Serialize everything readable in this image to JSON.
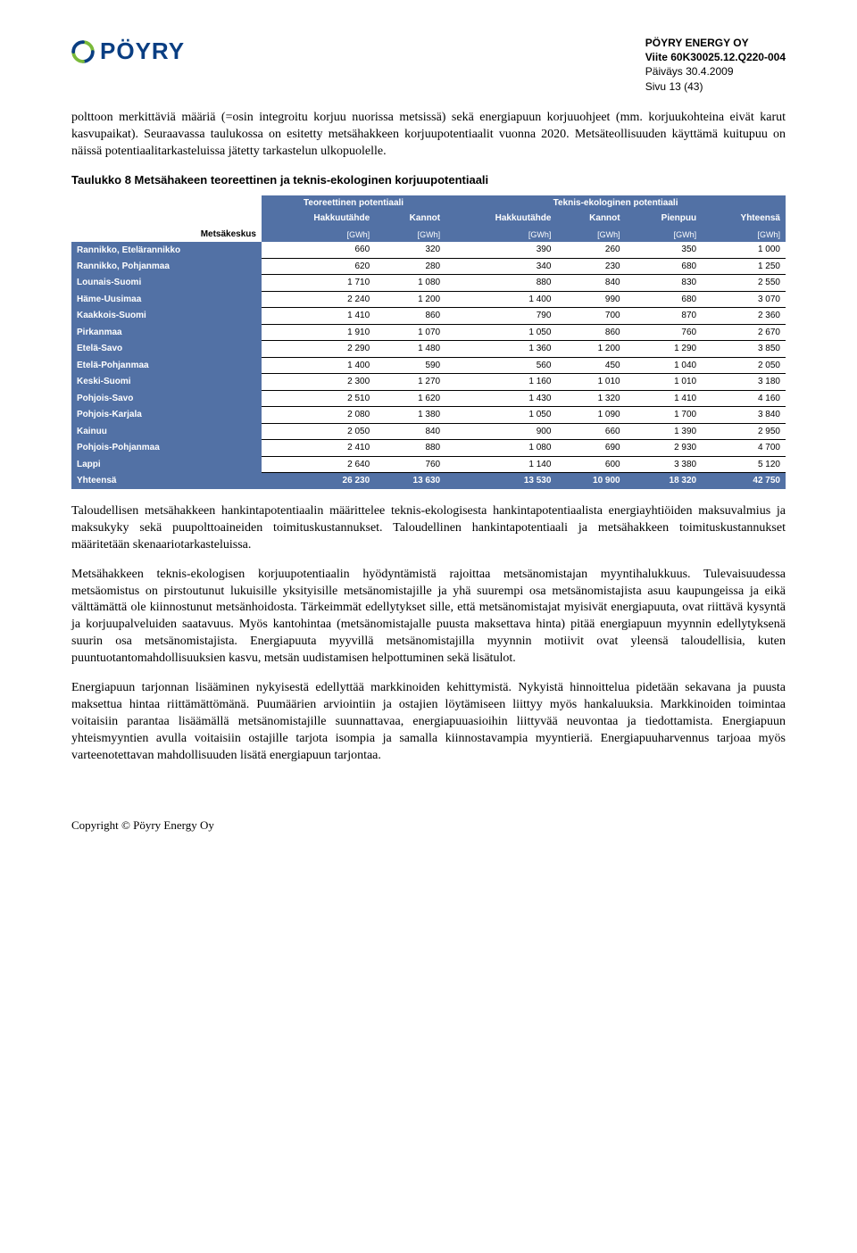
{
  "header": {
    "company": "PÖYRY ENERGY OY",
    "ref": "Viite 60K30025.12.Q220-004",
    "date": "Päiväys 30.4.2009",
    "page": "Sivu 13 (43)",
    "logo_text": "PÖYRY",
    "logo_colors": {
      "green": "#7aba3a",
      "blue": "#0a3e82"
    }
  },
  "para1": "polttoon merkittäviä määriä (=osin integroitu korjuu nuorissa metsissä) sekä energiapuun korjuuohjeet (mm. korjuukohteina eivät karut kasvupaikat). Seuraavassa taulukossa on esitetty metsähakkeen korjuupotentiaalit vuonna 2020. Metsäteollisuuden käyttämä kuitupuu on näissä potentiaalitarkasteluissa jätetty tarkastelun ulkopuolelle.",
  "table": {
    "title": "Taulukko 8 Metsähakeen teoreettinen ja teknis-ekologinen korjuupotentiaali",
    "corner_label": "Metsäkeskus",
    "group_headers": [
      "Teoreettinen potentiaali",
      "Teknis-ekologinen potentiaali"
    ],
    "col_headers": [
      "Hakkuutähde",
      "Kannot",
      "Hakkuutähde",
      "Kannot",
      "Pienpuu",
      "Yhteensä"
    ],
    "unit": "[GWh]",
    "rows": [
      {
        "label": "Rannikko, Etelärannikko",
        "v": [
          "660",
          "320",
          "390",
          "260",
          "350",
          "1 000"
        ]
      },
      {
        "label": "Rannikko, Pohjanmaa",
        "v": [
          "620",
          "280",
          "340",
          "230",
          "680",
          "1 250"
        ]
      },
      {
        "label": "Lounais-Suomi",
        "v": [
          "1 710",
          "1 080",
          "880",
          "840",
          "830",
          "2 550"
        ]
      },
      {
        "label": "Häme-Uusimaa",
        "v": [
          "2 240",
          "1 200",
          "1 400",
          "990",
          "680",
          "3 070"
        ]
      },
      {
        "label": "Kaakkois-Suomi",
        "v": [
          "1 410",
          "860",
          "790",
          "700",
          "870",
          "2 360"
        ]
      },
      {
        "label": "Pirkanmaa",
        "v": [
          "1 910",
          "1 070",
          "1 050",
          "860",
          "760",
          "2 670"
        ]
      },
      {
        "label": "Etelä-Savo",
        "v": [
          "2 290",
          "1 480",
          "1 360",
          "1 200",
          "1 290",
          "3 850"
        ]
      },
      {
        "label": "Etelä-Pohjanmaa",
        "v": [
          "1 400",
          "590",
          "560",
          "450",
          "1 040",
          "2 050"
        ]
      },
      {
        "label": "Keski-Suomi",
        "v": [
          "2 300",
          "1 270",
          "1 160",
          "1 010",
          "1 010",
          "3 180"
        ]
      },
      {
        "label": "Pohjois-Savo",
        "v": [
          "2 510",
          "1 620",
          "1 430",
          "1 320",
          "1 410",
          "4 160"
        ]
      },
      {
        "label": "Pohjois-Karjala",
        "v": [
          "2 080",
          "1 380",
          "1 050",
          "1 090",
          "1 700",
          "3 840"
        ]
      },
      {
        "label": "Kainuu",
        "v": [
          "2 050",
          "840",
          "900",
          "660",
          "1 390",
          "2 950"
        ]
      },
      {
        "label": "Pohjois-Pohjanmaa",
        "v": [
          "2 410",
          "880",
          "1 080",
          "690",
          "2 930",
          "4 700"
        ]
      },
      {
        "label": "Lappi",
        "v": [
          "2 640",
          "760",
          "1 140",
          "600",
          "3 380",
          "5 120"
        ]
      }
    ],
    "total": {
      "label": "Yhteensä",
      "v": [
        "26 230",
        "13 630",
        "13 530",
        "10 900",
        "18 320",
        "42 750"
      ]
    },
    "header_bg": "#5271a5"
  },
  "para2": "Taloudellisen metsähakkeen hankintapotentiaalin määrittelee teknis-ekologisesta hankintapotentiaalista energiayhtiöiden maksuvalmius ja maksukyky sekä puupolttoaineiden toimituskustannukset. Taloudellinen hankintapotentiaali ja metsähakkeen toimituskustannukset määritetään skenaariotarkasteluissa.",
  "para3": "Metsähakkeen teknis-ekologisen korjuupotentiaalin hyödyntämistä rajoittaa metsänomistajan myyntihalukkuus. Tulevaisuudessa metsäomistus on pirstoutunut lukuisille yksityisille metsänomistajille ja yhä suurempi osa metsänomistajista asuu kaupungeissa ja eikä välttämättä ole kiinnostunut metsänhoidosta. Tärkeimmät edellytykset sille, että metsänomistajat myisivät energiapuuta, ovat riittävä kysyntä ja korjuupalveluiden saatavuus. Myös kantohintaa (metsänomistajalle puusta maksettava hinta) pitää energiapuun myynnin edellytyksenä suurin osa metsänomistajista. Energiapuuta myyvillä metsänomistajilla myynnin motiivit ovat yleensä taloudellisia, kuten puuntuotantomahdollisuuksien kasvu, metsän uudistamisen helpottuminen sekä lisätulot.",
  "para4": "Energiapuun tarjonnan lisääminen nykyisestä edellyttää markkinoiden kehittymistä. Nykyistä hinnoittelua pidetään sekavana ja puusta maksettua hintaa riittämättömänä. Puumäärien arviointiin ja ostajien löytämiseen liittyy myös hankaluuksia. Markkinoiden toimintaa voitaisiin parantaa lisäämällä metsänomistajille suunnattavaa, energiapuuasioihin liittyvää neuvontaa ja tiedottamista. Energiapuun yhteismyyntien avulla voitaisiin ostajille tarjota isompia ja samalla kiinnostavampia myyntieriä. Energiapuuharvennus tarjoaa myös varteenotettavan mahdollisuuden lisätä energiapuun tarjontaa.",
  "footer": "Copyright © Pöyry Energy Oy"
}
